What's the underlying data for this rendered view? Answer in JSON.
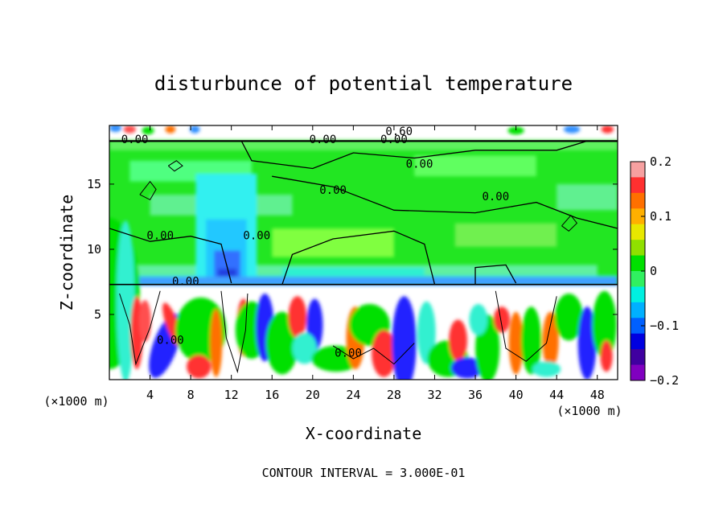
{
  "chart_data": {
    "type": "heatmap",
    "title": "disturbunce of potential temperature",
    "xlabel": "X-coordinate",
    "ylabel": "Z-coordinate",
    "x_unit": "(×1000 m)",
    "z_unit": "(×1000 m)",
    "x_ticks": [
      "4",
      "8",
      "12",
      "16",
      "20",
      "24",
      "28",
      "32",
      "36",
      "40",
      "44",
      "48"
    ],
    "x_tick_values": [
      4,
      8,
      12,
      16,
      20,
      24,
      28,
      32,
      36,
      40,
      44,
      48
    ],
    "y_ticks": [
      "5",
      "10",
      "15"
    ],
    "y_tick_values": [
      5,
      10,
      15
    ],
    "xlim": [
      0,
      50
    ],
    "ylim": [
      0,
      19.5
    ],
    "colorbar": {
      "range": [
        -0.2,
        0.2
      ],
      "tick_labels": [
        "0.2",
        "0.1",
        "0",
        "−0.1",
        "−0.2"
      ],
      "tick_values": [
        0.2,
        0.1,
        0,
        -0.1,
        -0.2
      ],
      "colors": [
        "#f6a0a0",
        "#ff3030",
        "#ff7000",
        "#ffb000",
        "#e8e800",
        "#90e000",
        "#00e000",
        "#30f060",
        "#00f0e0",
        "#00b0ff",
        "#0060ff",
        "#0000e0",
        "#4000a0",
        "#8000c0"
      ]
    },
    "contour_labels": [
      {
        "text": "0.00",
        "x": 14.5,
        "z": 11.0
      },
      {
        "text": "0.00",
        "x": 22.0,
        "z": 14.5
      },
      {
        "text": "0.00",
        "x": 30.5,
        "z": 16.5
      },
      {
        "text": "0.00",
        "x": 38.0,
        "z": 14.0
      },
      {
        "text": "0.00",
        "x": 5.0,
        "z": 11.0
      },
      {
        "text": "0.00",
        "x": 2.5,
        "z": 18.4
      },
      {
        "text": "0.00",
        "x": 21.0,
        "z": 18.4
      },
      {
        "text": "0.00",
        "x": 28.0,
        "z": 18.4
      },
      {
        "text": "0.00",
        "x": 7.5,
        "z": 7.5
      },
      {
        "text": "0.00",
        "x": 23.5,
        "z": 2.0
      },
      {
        "text": "0.60",
        "x": 28.5,
        "z": 19.0
      },
      {
        "text": "0.00",
        "x": 6.0,
        "z": 3.0
      }
    ],
    "contour_interval": "CONTOUR INTERVAL = 3.000E-01"
  }
}
